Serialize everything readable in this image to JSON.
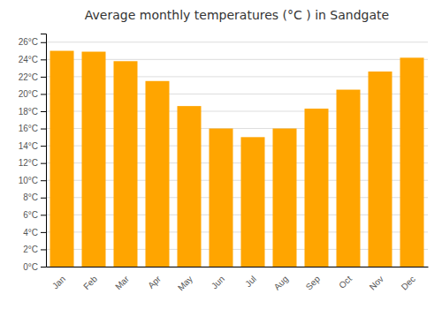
{
  "chart_data": {
    "type": "bar",
    "title": "Average monthly temperatures (°C ) in Sandgate",
    "categories": [
      "Jan",
      "Feb",
      "Mar",
      "Apr",
      "May",
      "Jun",
      "Jul",
      "Aug",
      "Sep",
      "Oct",
      "Nov",
      "Dec"
    ],
    "values": [
      25.0,
      24.9,
      23.8,
      21.5,
      18.6,
      16.0,
      15.0,
      16.0,
      18.3,
      20.5,
      22.6,
      24.2
    ],
    "color": "#FFA500",
    "ylim": [
      0,
      27
    ],
    "yticks": [
      {
        "value": 0,
        "label": "0°C"
      },
      {
        "value": 2,
        "label": "2°C"
      },
      {
        "value": 4,
        "label": "4°C"
      },
      {
        "value": 6,
        "label": "6°C"
      },
      {
        "value": 8,
        "label": "8°C"
      },
      {
        "value": 10,
        "label": "10°C"
      },
      {
        "value": 12,
        "label": "12°C"
      },
      {
        "value": 14,
        "label": "14°C"
      },
      {
        "value": 16,
        "label": "16°C"
      },
      {
        "value": 18,
        "label": "18°C"
      },
      {
        "value": 20,
        "label": "20°C"
      },
      {
        "value": 22,
        "label": "22°C"
      },
      {
        "value": 24,
        "label": "24°C"
      },
      {
        "value": 26,
        "label": "26°C"
      }
    ],
    "grid": true
  }
}
